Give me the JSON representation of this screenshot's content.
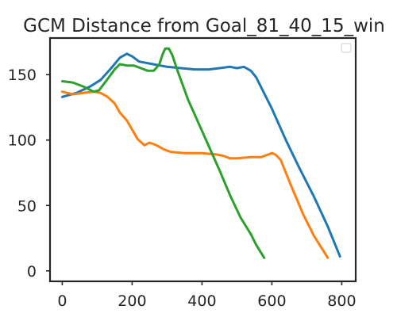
{
  "chart_data": {
    "type": "line",
    "title": "GCM Distance from Goal_81_40_15_win",
    "xlabel": "",
    "ylabel": "",
    "xlim": [
      -35,
      840
    ],
    "ylim": [
      -8,
      178
    ],
    "xticks": [
      0,
      200,
      400,
      600,
      800
    ],
    "yticks": [
      0,
      50,
      100,
      150
    ],
    "xtick_labels": [
      "0",
      "200",
      "400",
      "600",
      "800"
    ],
    "ytick_labels": [
      "0",
      "50",
      "100",
      "150"
    ],
    "grid": false,
    "legend": {
      "placement": "top-right",
      "entries": []
    },
    "series": [
      {
        "color": "#1f77b4",
        "points": [
          [
            0,
            133
          ],
          [
            40,
            136
          ],
          [
            80,
            141
          ],
          [
            110,
            146
          ],
          [
            140,
            155
          ],
          [
            165,
            163
          ],
          [
            185,
            166
          ],
          [
            200,
            164
          ],
          [
            220,
            160
          ],
          [
            260,
            158
          ],
          [
            300,
            156
          ],
          [
            340,
            155
          ],
          [
            380,
            154
          ],
          [
            420,
            154
          ],
          [
            450,
            155
          ],
          [
            480,
            156
          ],
          [
            500,
            155
          ],
          [
            520,
            156
          ],
          [
            540,
            153
          ],
          [
            555,
            148
          ],
          [
            570,
            140
          ],
          [
            600,
            124
          ],
          [
            640,
            100
          ],
          [
            680,
            78
          ],
          [
            720,
            57
          ],
          [
            760,
            34
          ],
          [
            795,
            11
          ]
        ]
      },
      {
        "color": "#ff7f0e",
        "points": [
          [
            0,
            137
          ],
          [
            30,
            135
          ],
          [
            60,
            136
          ],
          [
            90,
            137
          ],
          [
            110,
            136
          ],
          [
            130,
            133
          ],
          [
            150,
            128
          ],
          [
            165,
            121
          ],
          [
            185,
            115
          ],
          [
            200,
            108
          ],
          [
            215,
            101
          ],
          [
            235,
            96
          ],
          [
            250,
            98
          ],
          [
            270,
            96
          ],
          [
            290,
            93
          ],
          [
            310,
            91
          ],
          [
            350,
            90
          ],
          [
            400,
            90
          ],
          [
            440,
            89
          ],
          [
            460,
            88
          ],
          [
            480,
            86
          ],
          [
            500,
            86
          ],
          [
            540,
            87
          ],
          [
            570,
            87
          ],
          [
            590,
            89
          ],
          [
            600,
            90
          ],
          [
            610,
            89
          ],
          [
            625,
            85
          ],
          [
            640,
            75
          ],
          [
            660,
            62
          ],
          [
            690,
            43
          ],
          [
            720,
            27
          ],
          [
            760,
            10
          ]
        ]
      },
      {
        "color": "#2ca02c",
        "points": [
          [
            0,
            145
          ],
          [
            30,
            144
          ],
          [
            60,
            141
          ],
          [
            90,
            137
          ],
          [
            105,
            138
          ],
          [
            125,
            145
          ],
          [
            150,
            154
          ],
          [
            165,
            158
          ],
          [
            185,
            157
          ],
          [
            205,
            157
          ],
          [
            225,
            155
          ],
          [
            245,
            153
          ],
          [
            262,
            153
          ],
          [
            278,
            158
          ],
          [
            288,
            166
          ],
          [
            295,
            170
          ],
          [
            305,
            170
          ],
          [
            315,
            165
          ],
          [
            330,
            153
          ],
          [
            345,
            142
          ],
          [
            360,
            131
          ],
          [
            390,
            113
          ],
          [
            420,
            95
          ],
          [
            450,
            77
          ],
          [
            480,
            58
          ],
          [
            510,
            41
          ],
          [
            540,
            28
          ],
          [
            555,
            20
          ],
          [
            578,
            10
          ]
        ]
      }
    ]
  }
}
